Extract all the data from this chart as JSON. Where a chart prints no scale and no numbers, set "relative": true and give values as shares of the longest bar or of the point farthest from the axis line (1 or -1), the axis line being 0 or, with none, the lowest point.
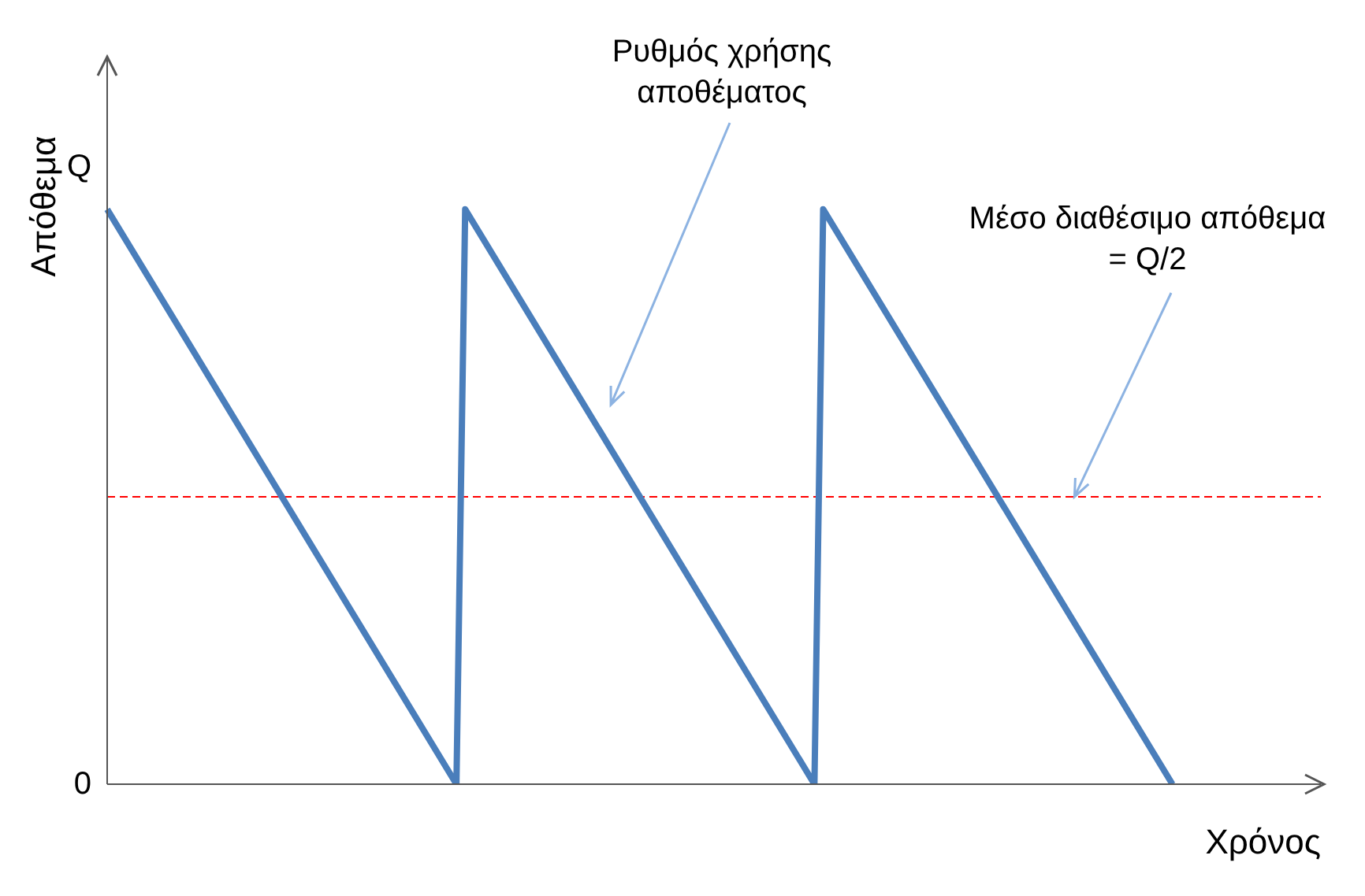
{
  "chart_data": {
    "type": "line",
    "xlabel": "Χρόνος",
    "ylabel": "Απόθεμα",
    "relative": true,
    "grid": false,
    "marker": "none",
    "line_style": "solid",
    "categories": [
      null,
      null,
      null,
      null,
      null,
      null,
      null,
      null,
      null,
      null,
      null,
      null,
      null,
      null,
      null,
      null,
      null,
      null,
      null,
      null,
      null,
      null,
      null,
      null,
      null,
      null,
      null,
      null,
      null,
      null,
      null,
      null,
      null,
      null,
      null,
      null,
      null,
      null,
      null,
      null,
      null,
      null,
      null,
      null,
      null,
      null,
      null,
      null,
      null,
      null,
      null,
      null,
      null,
      null,
      null,
      null,
      null,
      null,
      null,
      null,
      null,
      null,
      null,
      null,
      null,
      null,
      null,
      null,
      null,
      null,
      null,
      null,
      null,
      null,
      null,
      null,
      null,
      null,
      null,
      null,
      null,
      null,
      null,
      null,
      null,
      null,
      null,
      null,
      null,
      null,
      null,
      null,
      null,
      null,
      null,
      null,
      null,
      null,
      null,
      null,
      null,
      null,
      null,
      null,
      null,
      null,
      null,
      null,
      null,
      null,
      null,
      null,
      null,
      null,
      null,
      null,
      null,
      null,
      null,
      null,
      null,
      null,
      null,
      null,
      null,
      null,
      null,
      null,
      null,
      null,
      null,
      null,
      null,
      null,
      null,
      null,
      null,
      null,
      null,
      null
    ],
    "series": [
      {
        "color": "#4a7ebb",
        "values": [
          1,
          null,
          null,
          null,
          null,
          null,
          null,
          null,
          null,
          null,
          null,
          null,
          null,
          null,
          null,
          null,
          null,
          null,
          null,
          null,
          null,
          null,
          null,
          null,
          null,
          null,
          null,
          null,
          null,
          null,
          null,
          null,
          null,
          null,
          null,
          null,
          null,
          null,
          null,
          null,
          0,
          1,
          null,
          null,
          null,
          null,
          null,
          null,
          null,
          null,
          null,
          null,
          null,
          null,
          null,
          null,
          null,
          null,
          null,
          null,
          null,
          null,
          null,
          null,
          null,
          null,
          null,
          null,
          null,
          null,
          null,
          null,
          null,
          null,
          null,
          null,
          null,
          null,
          null,
          null,
          null,
          0,
          1,
          null,
          null,
          null,
          null,
          null,
          null,
          null,
          null,
          null,
          null,
          null,
          null,
          null,
          null,
          null,
          null,
          null,
          null,
          null,
          null,
          null,
          null,
          null,
          null,
          null,
          null,
          null,
          null,
          null,
          null,
          null,
          null,
          null,
          null,
          null,
          null,
          null,
          null,
          null,
          0,
          null,
          null,
          null,
          null,
          null,
          null,
          null,
          null,
          null,
          null,
          null,
          null,
          null,
          null,
          null,
          null,
          null
        ]
      }
    ],
    "ref_lines": [
      {
        "axis": "y",
        "value": 0.5,
        "color": "#ff0000",
        "line_style": "dashed"
      }
    ],
    "annotations": [
      "Ρυθμός χρήσης αποθέματος",
      "Μέσο διαθέσιμο απόθεμα = Q/2",
      "Q",
      "0"
    ]
  }
}
